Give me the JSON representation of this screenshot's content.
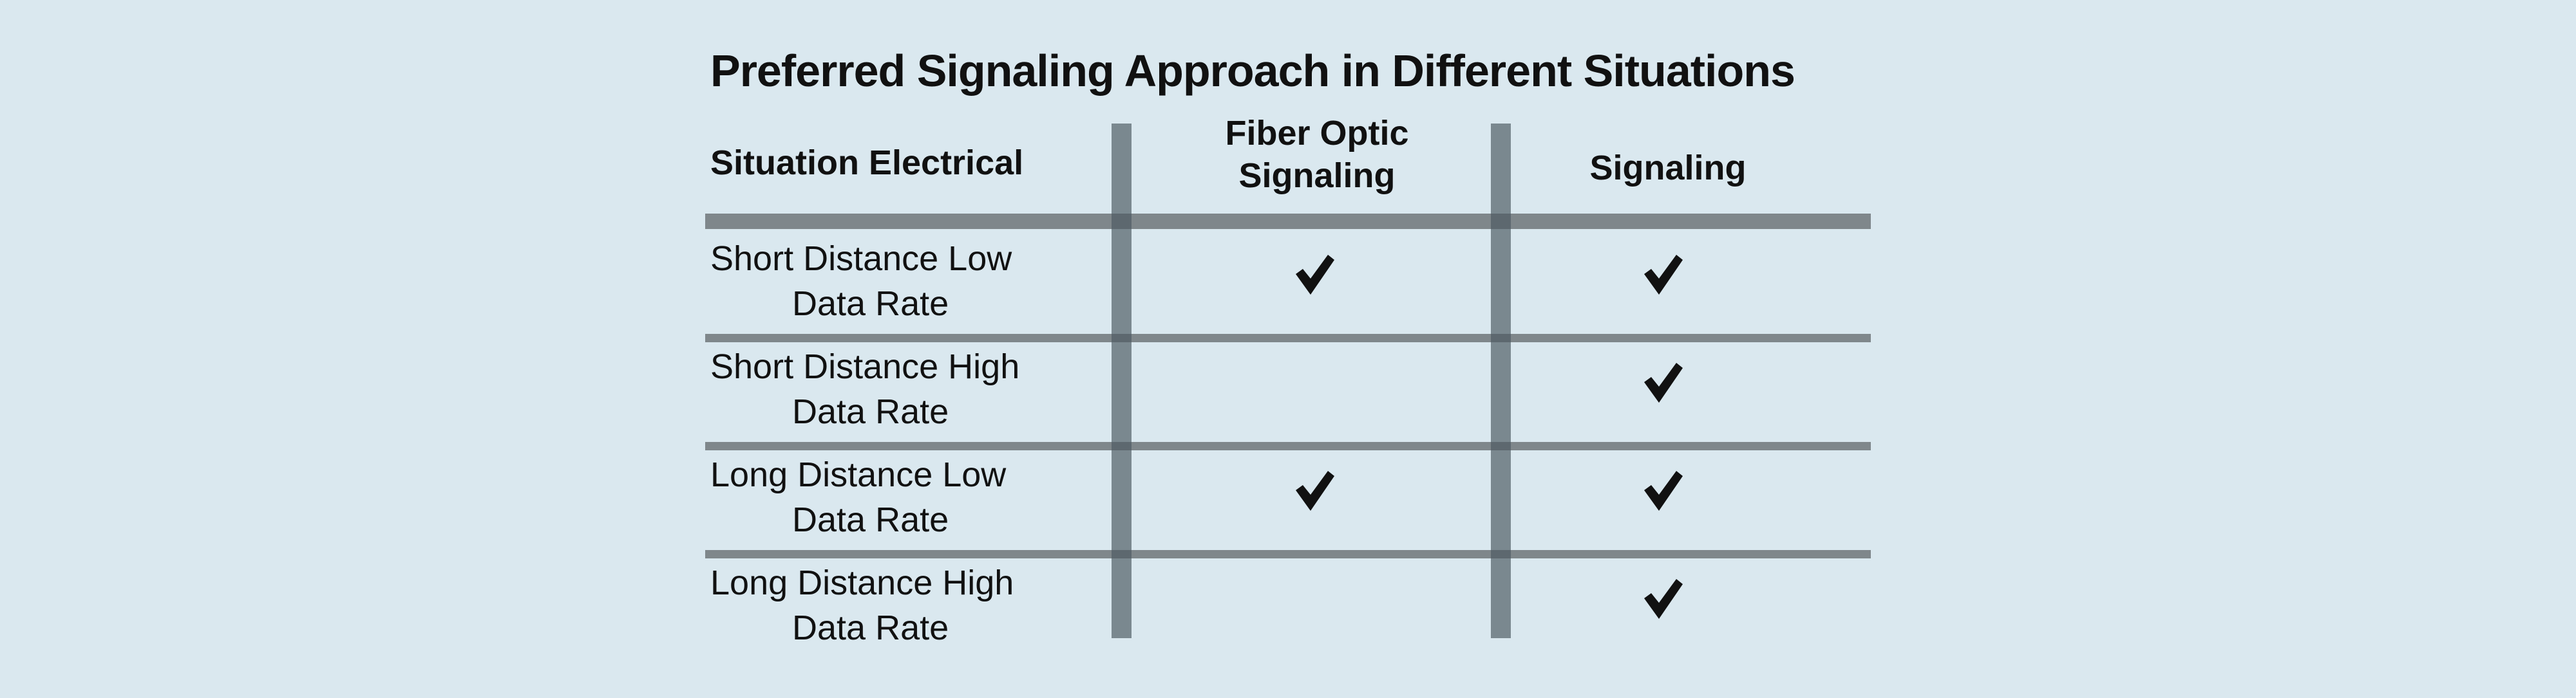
{
  "title": "Preferred Signaling Approach in Different Situations",
  "headers": {
    "situation": "Situation Electrical",
    "fiber_line1": "Fiber Optic",
    "fiber_line2": "Signaling",
    "signaling": "Signaling"
  },
  "rows": [
    {
      "line1": "Short Distance Low",
      "line2": "Data Rate",
      "fiber_optic": true,
      "signaling": true
    },
    {
      "line1": "Short Distance High",
      "line2": "Data Rate",
      "fiber_optic": false,
      "signaling": true
    },
    {
      "line1": "Long Distance Low",
      "line2": "Data Rate",
      "fiber_optic": true,
      "signaling": true
    },
    {
      "line1": "Long Distance High",
      "line2": "Data Rate",
      "fiber_optic": false,
      "signaling": true
    }
  ],
  "icons": {
    "check": "checkmark-icon"
  },
  "colors": {
    "background": "#dae8ef",
    "rule": "#7f878b",
    "column_divider": "#4c5a62",
    "text": "#111111"
  }
}
